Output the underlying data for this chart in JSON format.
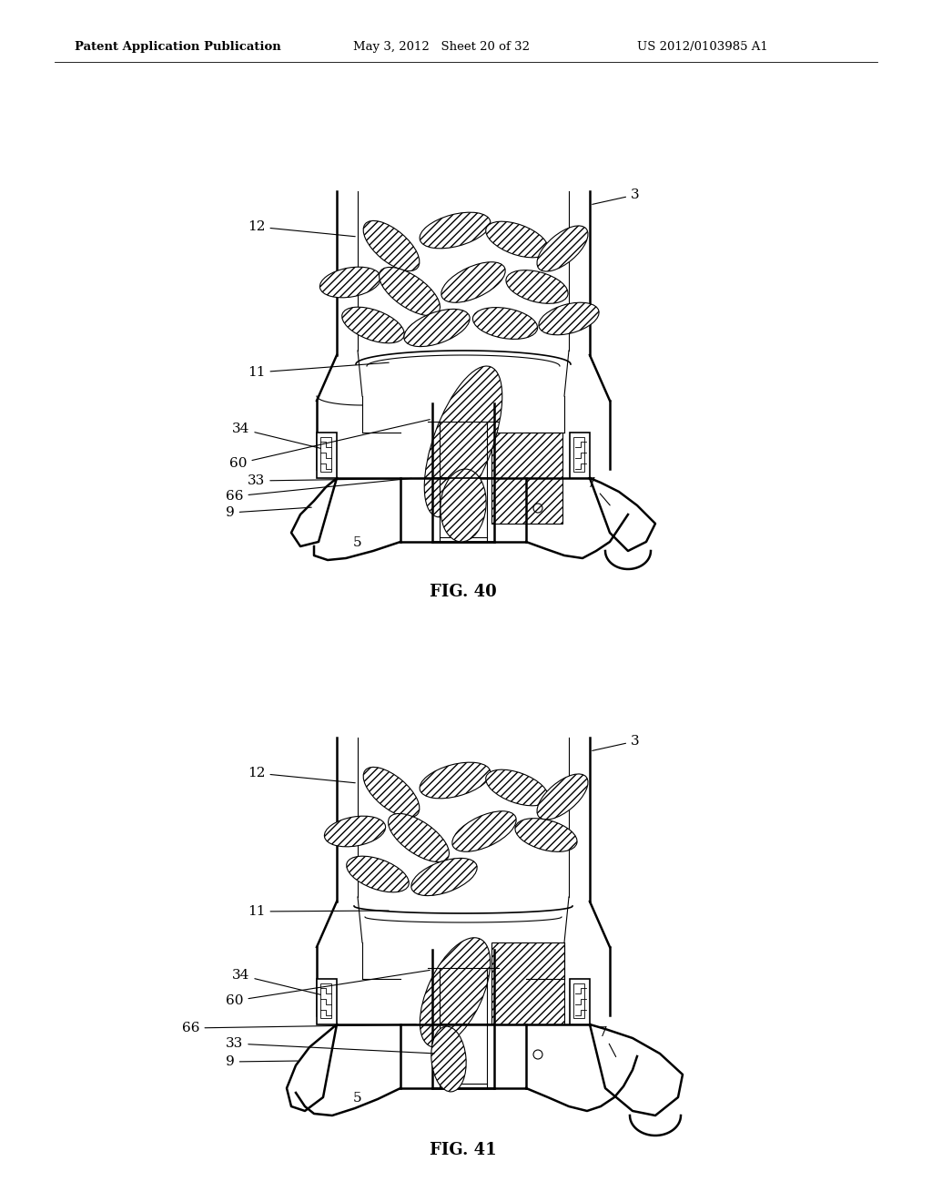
{
  "background_color": "#ffffff",
  "header_left": "Patent Application Publication",
  "header_mid": "May 3, 2012   Sheet 20 of 32",
  "header_right": "US 2012/0103985 A1",
  "fig40_label": "FIG. 40",
  "fig41_label": "FIG. 41",
  "fig_width": 10.24,
  "fig_height": 13.2,
  "dpi": 100,
  "line_color": "#000000",
  "pills_fig40": [
    [
      430,
      175,
      75,
      35,
      40
    ],
    [
      500,
      158,
      80,
      35,
      -15
    ],
    [
      568,
      168,
      72,
      33,
      20
    ],
    [
      618,
      178,
      68,
      32,
      -40
    ],
    [
      385,
      215,
      68,
      32,
      -10
    ],
    [
      450,
      225,
      78,
      35,
      35
    ],
    [
      520,
      215,
      76,
      34,
      -25
    ],
    [
      590,
      220,
      70,
      33,
      15
    ],
    [
      410,
      262,
      72,
      33,
      20
    ],
    [
      480,
      265,
      76,
      34,
      -20
    ],
    [
      555,
      260,
      72,
      33,
      10
    ],
    [
      625,
      255,
      68,
      32,
      -15
    ]
  ],
  "pills_fig41": [
    [
      430,
      175,
      75,
      35,
      40
    ],
    [
      500,
      162,
      80,
      35,
      -15
    ],
    [
      568,
      170,
      72,
      33,
      20
    ],
    [
      618,
      180,
      68,
      32,
      -40
    ],
    [
      390,
      218,
      68,
      32,
      -10
    ],
    [
      460,
      225,
      78,
      35,
      35
    ],
    [
      532,
      218,
      76,
      34,
      -25
    ],
    [
      600,
      222,
      70,
      33,
      15
    ],
    [
      415,
      265,
      72,
      33,
      20
    ],
    [
      488,
      268,
      76,
      34,
      -20
    ]
  ]
}
